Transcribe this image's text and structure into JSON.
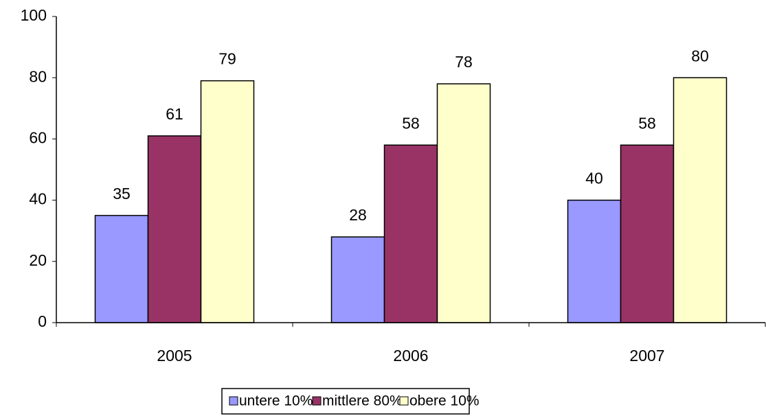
{
  "chart_data": {
    "type": "bar",
    "categories": [
      "2005",
      "2006",
      "2007"
    ],
    "series": [
      {
        "name": "untere 10%",
        "color": "#9999ff",
        "values": [
          35,
          28,
          40
        ]
      },
      {
        "name": "mittlere 80%",
        "color": "#993366",
        "values": [
          61,
          58,
          58
        ]
      },
      {
        "name": "obere 10%",
        "color": "#ffffcc",
        "values": [
          79,
          78,
          80
        ]
      }
    ],
    "ylim": [
      0,
      100
    ],
    "yticks": [
      0,
      20,
      40,
      60,
      80,
      100
    ],
    "grid": false,
    "legend": "bottom"
  }
}
